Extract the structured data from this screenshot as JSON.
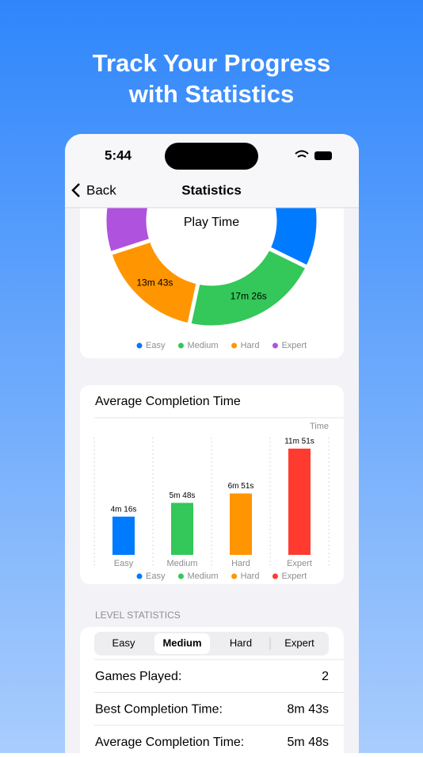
{
  "header": {
    "title_lines": [
      "Track Your Progress",
      "with Statistics"
    ]
  },
  "status_bar": {
    "time": "5:44"
  },
  "nav": {
    "back": "Back",
    "title": "Statistics"
  },
  "charts": [
    {
      "type": "pie",
      "title": "Play Time",
      "categories": [
        "Easy",
        "Medium",
        "Hard",
        "Expert"
      ],
      "values": [
        1597,
        1046,
        823,
        1487
      ],
      "value_labels": [
        null,
        "17m 26s",
        "13m 43s",
        null
      ],
      "colors": [
        "#007aff",
        "#34c759",
        "#ff9500",
        "#af52de"
      ],
      "legend": "bottom"
    },
    {
      "type": "bar",
      "title": "Average Completion Time",
      "axis_label": "Time",
      "categories": [
        "Easy",
        "Medium",
        "Hard",
        "Expert"
      ],
      "values": [
        256,
        348,
        411,
        711
      ],
      "value_labels": [
        "4m 16s",
        "5m 48s",
        "6m 51s",
        "11m 51s"
      ],
      "colors": [
        "#007aff",
        "#34c759",
        "#ff9500",
        "#ff3b30"
      ],
      "ylim": [
        0,
        785
      ],
      "legend": "bottom"
    }
  ],
  "level_statistics": {
    "heading": "LEVEL STATISTICS",
    "tabs": [
      "Easy",
      "Medium",
      "Hard",
      "Expert"
    ],
    "selected": 1,
    "rows": [
      [
        "Games Played:",
        "2"
      ],
      [
        "Best Completion Time:",
        "8m 43s"
      ],
      [
        "Average Completion Time:",
        "5m 48s"
      ]
    ]
  }
}
